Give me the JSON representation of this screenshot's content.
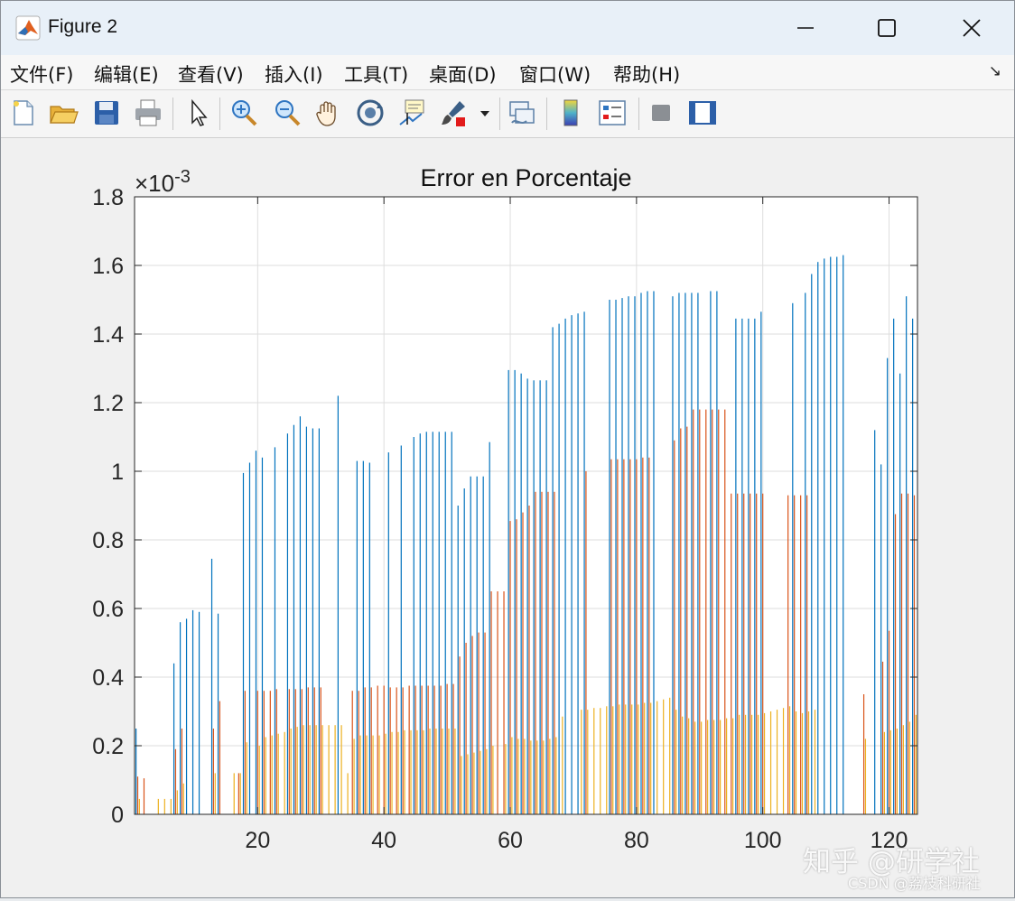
{
  "window": {
    "title": "Figure 2"
  },
  "menu": [
    {
      "label": "文件(F)"
    },
    {
      "label": "编辑(E)"
    },
    {
      "label": "查看(V)"
    },
    {
      "label": "插入(I)"
    },
    {
      "label": "工具(T)"
    },
    {
      "label": "桌面(D)"
    },
    {
      "label": "窗口(W)"
    },
    {
      "label": "帮助(H)"
    }
  ],
  "toolbar": {
    "icons": [
      "new-figure-icon",
      "open-file-icon",
      "save-icon",
      "print-icon",
      "pointer-icon",
      "zoom-in-icon",
      "zoom-out-icon",
      "pan-icon",
      "rotate-3d-icon",
      "data-cursor-icon",
      "brush-icon",
      "link-plot-icon",
      "colorbar-icon",
      "legend-icon",
      "hide-plot-tools-icon",
      "show-plot-tools-icon"
    ]
  },
  "colors": {
    "series1": "#0072BD",
    "series2": "#D95319",
    "series3": "#EDB120"
  },
  "watermark": {
    "line1": "知乎 @研学社",
    "line2": "CSDN @荔枝科研社"
  },
  "chart_data": {
    "type": "bar",
    "title": "Error en Porcentaje",
    "exponent_label": "×10",
    "exponent_power": "-3",
    "xlim": [
      0.5,
      124.5
    ],
    "ylim": [
      0,
      1.8
    ],
    "xticks": [
      20,
      40,
      60,
      80,
      100,
      120
    ],
    "yticks": [
      0,
      0.2,
      0.4,
      0.6,
      0.8,
      1,
      1.2,
      1.4,
      1.6,
      1.8
    ],
    "ytick_labels": [
      "0",
      "0.2",
      "0.4",
      "0.6",
      "0.8",
      "1",
      "1.2",
      "1.4",
      "1.6",
      "1.8"
    ],
    "grid": true,
    "series": [
      {
        "values": [
          0.25,
          0,
          0,
          0,
          0,
          0,
          0.44,
          0.56,
          0.57,
          0.595,
          0.59,
          0,
          0.745,
          0.585,
          0,
          0,
          0,
          0.995,
          1.025,
          1.06,
          1.04,
          0,
          1.07,
          0,
          1.11,
          1.135,
          1.16,
          1.13,
          1.125,
          1.125,
          0,
          0,
          1.22,
          0,
          0,
          1.03,
          1.03,
          1.025,
          0,
          0,
          1.055,
          0,
          1.075,
          0,
          1.1,
          1.11,
          1.115,
          1.115,
          1.115,
          1.115,
          1.115,
          0.9,
          0.95,
          0.985,
          0.985,
          0.985,
          1.085,
          0,
          0,
          1.295,
          1.295,
          1.285,
          1.27,
          1.265,
          1.265,
          1.265,
          1.42,
          1.43,
          1.445,
          1.455,
          1.46,
          1.465,
          0,
          0,
          0,
          1.5,
          1.5,
          1.505,
          1.51,
          1.51,
          1.52,
          1.525,
          1.525,
          0,
          0,
          1.51,
          1.52,
          1.52,
          1.52,
          1.52,
          0,
          1.525,
          1.525,
          0,
          0,
          1.445,
          1.445,
          1.445,
          1.445,
          1.465,
          0,
          0,
          0,
          0,
          1.49,
          0,
          1.52,
          1.575,
          1.61,
          1.62,
          1.625,
          1.625,
          1.63,
          0,
          0,
          0,
          0,
          1.12,
          1.02,
          1.33,
          1.445,
          1.285,
          1.51,
          1.445
        ]
      },
      {
        "values": [
          0.11,
          0.105,
          0,
          0,
          0,
          0,
          0.19,
          0.25,
          0,
          0,
          0,
          0,
          0.25,
          0.33,
          0,
          0,
          0.12,
          0.36,
          0,
          0.36,
          0.36,
          0.36,
          0.365,
          0,
          0.365,
          0.365,
          0.365,
          0.37,
          0.37,
          0.37,
          0,
          0,
          0,
          0,
          0.36,
          0.36,
          0.37,
          0.37,
          0.375,
          0.375,
          0.37,
          0.37,
          0.37,
          0.375,
          0.375,
          0.375,
          0.375,
          0.375,
          0.375,
          0.38,
          0.38,
          0.46,
          0.5,
          0.52,
          0.53,
          0.53,
          0.65,
          0.65,
          0.65,
          0.855,
          0.86,
          0.88,
          0.9,
          0.94,
          0.94,
          0.94,
          0.94,
          0,
          0,
          0,
          0,
          1,
          0,
          0,
          0,
          1.035,
          1.035,
          1.035,
          1.035,
          1.035,
          1.04,
          1.04,
          0,
          0,
          0,
          1.09,
          1.125,
          1.13,
          1.18,
          1.18,
          1.18,
          1.18,
          1.18,
          1.18,
          0.935,
          0.935,
          0.935,
          0.935,
          0.935,
          0.935,
          0,
          0,
          0,
          0.93,
          0.93,
          0.93,
          0.93,
          0,
          0,
          0,
          0,
          0,
          0,
          0,
          0,
          0.35,
          0,
          0,
          0.445,
          0.535,
          0.875,
          0.935,
          0.935,
          0.93
        ]
      },
      {
        "values": [
          0.045,
          0,
          0,
          0.045,
          0.045,
          0.045,
          0.07,
          0.09,
          0,
          0,
          0,
          0,
          0.12,
          0,
          0,
          0.12,
          0.12,
          0.21,
          0,
          0.2,
          0.225,
          0.23,
          0.235,
          0.24,
          0.25,
          0.255,
          0.26,
          0.26,
          0.26,
          0.26,
          0.26,
          0.26,
          0.26,
          0.12,
          0.22,
          0.23,
          0.23,
          0.23,
          0.23,
          0.235,
          0.24,
          0.24,
          0.245,
          0.245,
          0.245,
          0.245,
          0.25,
          0.25,
          0.25,
          0.25,
          0.25,
          0.17,
          0.175,
          0.18,
          0.185,
          0.19,
          0.2,
          0,
          0.205,
          0.225,
          0.22,
          0.22,
          0.215,
          0.215,
          0.215,
          0.22,
          0.225,
          0.285,
          0,
          0,
          0.305,
          0.305,
          0.31,
          0.31,
          0.315,
          0.315,
          0.32,
          0.32,
          0.32,
          0.32,
          0.325,
          0.325,
          0.33,
          0.335,
          0.34,
          0.305,
          0.285,
          0.28,
          0.27,
          0.27,
          0.275,
          0.275,
          0.275,
          0.28,
          0.28,
          0.29,
          0.29,
          0.29,
          0.29,
          0.295,
          0.3,
          0.305,
          0.31,
          0.315,
          0.3,
          0.295,
          0.3,
          0.305,
          0,
          0,
          0,
          0,
          0,
          0,
          0,
          0.22,
          0,
          0,
          0.24,
          0.245,
          0.25,
          0.26,
          0.27,
          0.29
        ]
      }
    ]
  }
}
